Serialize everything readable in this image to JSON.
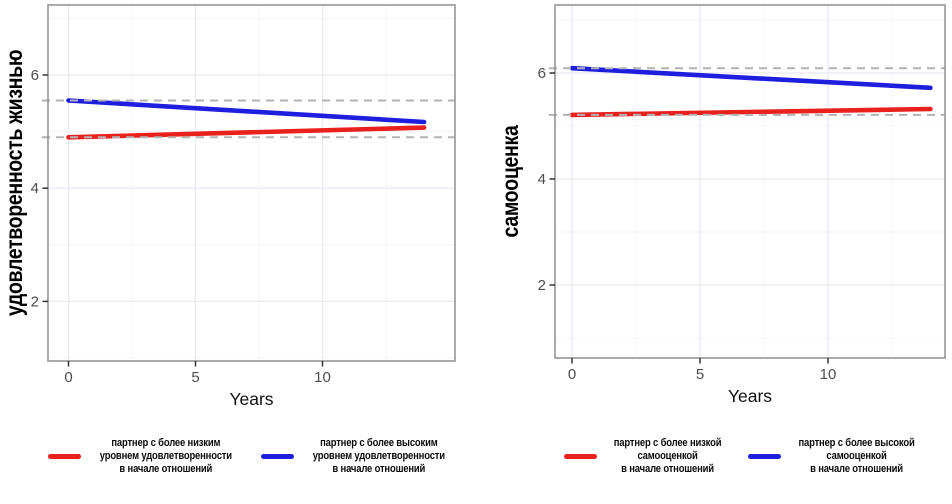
{
  "figure": {
    "background": "#ffffff",
    "accent_red": "#e9211d",
    "accent_blue": "#1e1ede",
    "grid_major_color": "#ebe8f2",
    "grid_minor_color": "#f5f3f9",
    "panel_border_color": "#969696",
    "tick_color": "#333333",
    "tick_label_color": "#4d4d4d",
    "axis_title_color": "#111111",
    "reference_line_color": "#b3b3b3"
  },
  "chart_data": [
    {
      "type": "line",
      "title": "",
      "ylabel": "удовлетворенность жизнью",
      "xlabel": "Years",
      "xlim": [
        -0.8,
        15.2
      ],
      "ylim": [
        0.95,
        7.25
      ],
      "grid": true,
      "legend_position": "bottom",
      "x_ticks": [
        {
          "v": 0,
          "label": "0"
        },
        {
          "v": 5,
          "label": "5"
        },
        {
          "v": 10,
          "label": "10"
        }
      ],
      "y_ticks": [
        {
          "v": 6,
          "label": "6"
        },
        {
          "v": 4,
          "label": "4"
        },
        {
          "v": 2,
          "label": "2"
        }
      ],
      "x_minor": [
        2.5,
        7.5,
        12.5
      ],
      "y_minor": [
        1,
        3,
        5,
        7
      ],
      "reference_lines": [
        {
          "value": 5.55,
          "style": "dashed",
          "color": "#b3b3b3"
        },
        {
          "value": 4.9,
          "style": "dashed",
          "color": "#b3b3b3"
        }
      ],
      "series": [
        {
          "name": "партнер с более низким уровнем удовлетворенности в начале отношений",
          "color": "#e9211d",
          "x": [
            0,
            14
          ],
          "y": [
            4.9,
            5.07
          ]
        },
        {
          "name": "партнер с более высоким уровнем удовлетворенности в начале отношений",
          "color": "#1e1ede",
          "x": [
            0,
            14
          ],
          "y": [
            5.55,
            5.17
          ]
        }
      ],
      "legend": [
        {
          "color": "#e9211d",
          "lines": [
            "партнер с более низким",
            "уровнем удовлетворенности",
            "в начале отношений"
          ]
        },
        {
          "color": "#1e1ede",
          "lines": [
            "партнер с более высоким",
            "уровнем удовлетворенности",
            "в начале отношений"
          ]
        }
      ]
    },
    {
      "type": "line",
      "title": "",
      "ylabel": "самооценка",
      "xlabel": "Years",
      "xlim": [
        -0.7,
        14.6
      ],
      "ylim": [
        0.6,
        7.3
      ],
      "grid": true,
      "legend_position": "bottom",
      "x_ticks": [
        {
          "v": 0,
          "label": "0"
        },
        {
          "v": 5,
          "label": "5"
        },
        {
          "v": 10,
          "label": "10"
        }
      ],
      "y_ticks": [
        {
          "v": 6,
          "label": "6"
        },
        {
          "v": 4,
          "label": "4"
        },
        {
          "v": 2,
          "label": "2"
        }
      ],
      "x_minor": [
        2.5,
        7.5,
        12.5
      ],
      "y_minor": [
        1,
        3,
        5,
        7
      ],
      "reference_lines": [
        {
          "value": 6.09,
          "style": "dashed",
          "color": "#b3b3b3"
        },
        {
          "value": 5.21,
          "style": "dashed",
          "color": "#b3b3b3"
        }
      ],
      "series": [
        {
          "name": "партнер с более низкой самооценкой в начале отношений",
          "color": "#e9211d",
          "x": [
            0,
            14
          ],
          "y": [
            5.21,
            5.32
          ]
        },
        {
          "name": "партнер с более высокой самооценкой в начале отношений",
          "color": "#1e1ede",
          "x": [
            0,
            14
          ],
          "y": [
            6.09,
            5.72
          ]
        }
      ],
      "legend": [
        {
          "color": "#e9211d",
          "lines": [
            "партнер с более низкой",
            "самооценкой",
            "в начале отношений"
          ]
        },
        {
          "color": "#1e1ede",
          "lines": [
            "партнер с более высокой",
            "самооценкой",
            "в начале отношений"
          ]
        }
      ]
    }
  ]
}
